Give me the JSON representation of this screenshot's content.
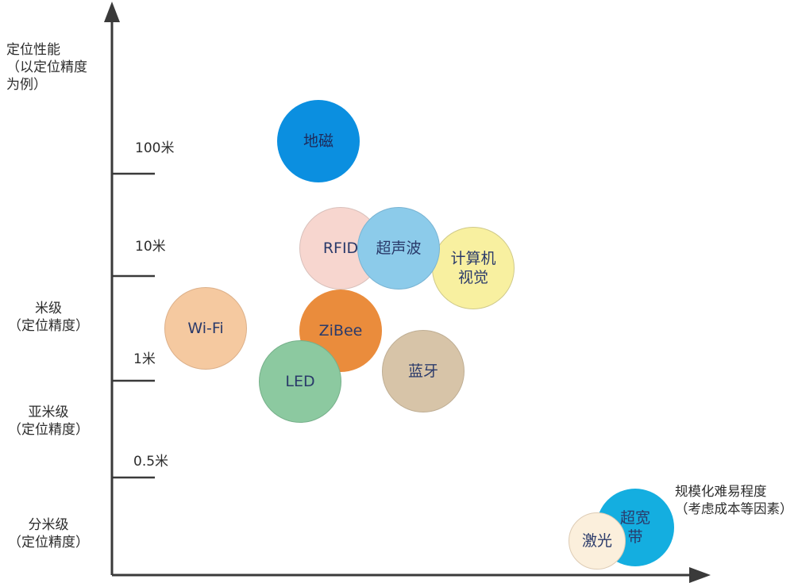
{
  "y_axis_title": "定位性能\n（以定位精度\n为例）",
  "x_axis_title": "规模化难易程度\n（考虑成本等因素）",
  "ticks": {
    "t100": "100米",
    "t10": "10米",
    "t1": "1米",
    "t05": "0.5米"
  },
  "levels": {
    "meter": "米级\n（定位精度）",
    "submeter": "亚米级\n（定位精度）",
    "decimeter": "分米级\n（定位精度）"
  },
  "technologies": {
    "geomag": "地磁",
    "rfid": "RFID",
    "ultrasound": "超声波",
    "vision": "计算机\n视觉",
    "wifi": "Wi-Fi",
    "zigbee": "ZiBee",
    "led": "LED",
    "bluetooth": "蓝牙",
    "uwb": "超宽\n带",
    "laser": "激光"
  },
  "colors": {
    "axis": "#3a3a3a",
    "geomag": "#0b8fe0",
    "rfid": "#f7d6cf",
    "ultrasound": "#8ccbea",
    "vision": "#f8f0a0",
    "wifi": "#f5c9a0",
    "zigbee": "#ea8c3c",
    "led": "#8cc9a0",
    "bluetooth": "#d7c4a8",
    "uwb": "#14aee0",
    "laser": "#fbefdc"
  }
}
